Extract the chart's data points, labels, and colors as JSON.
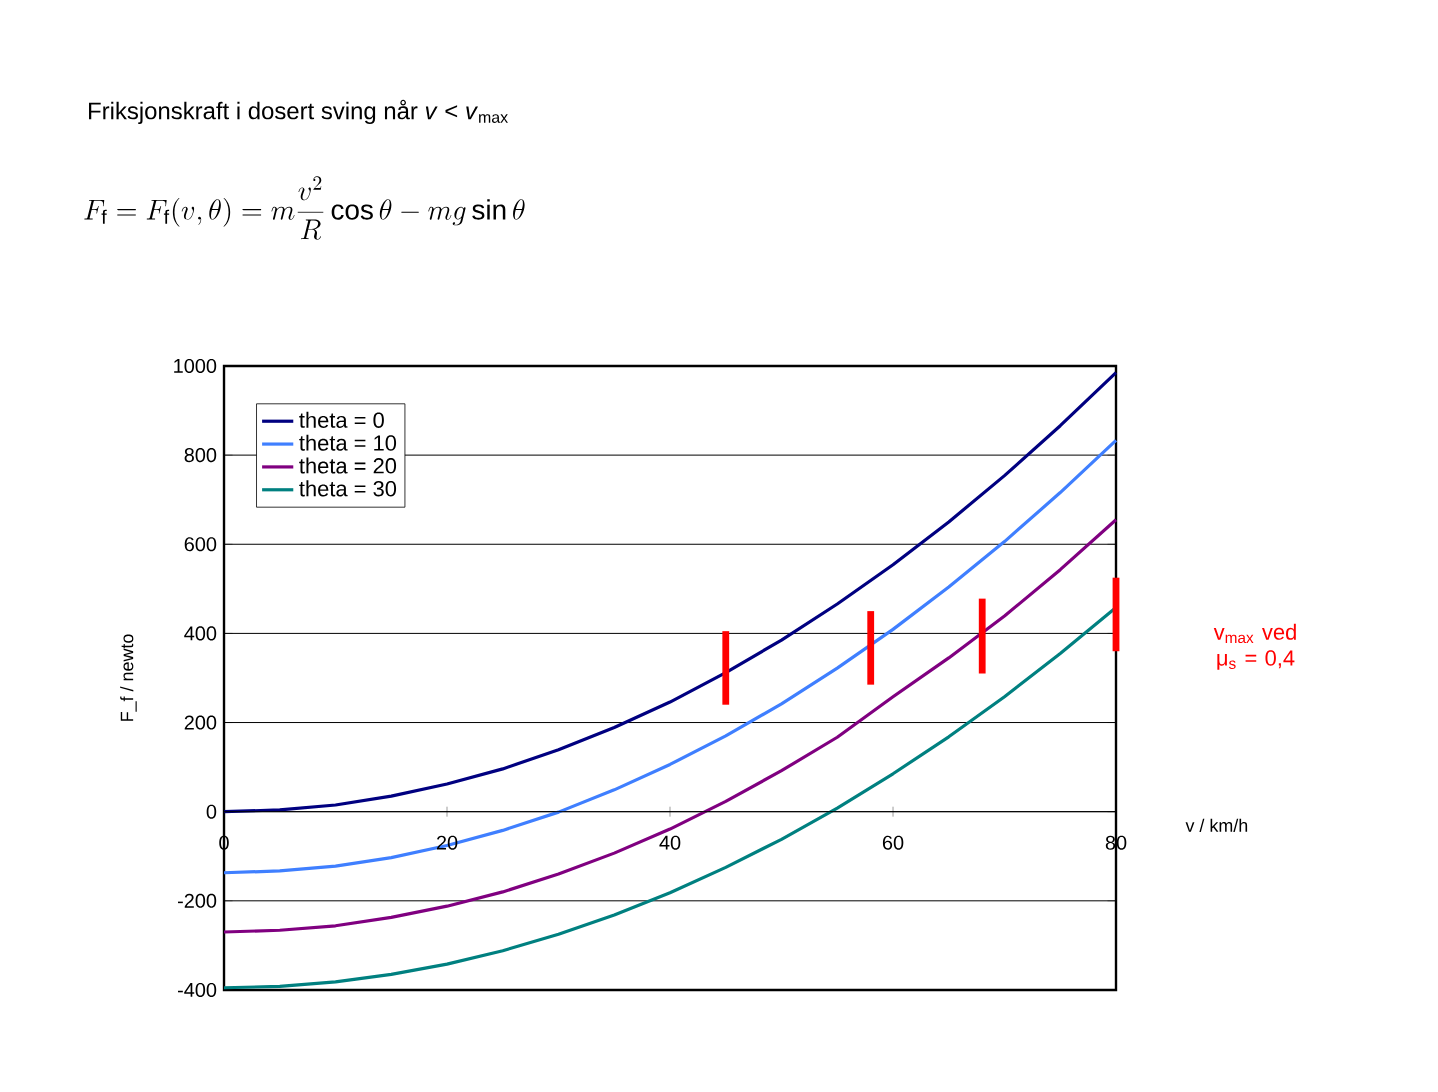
{
  "chart_data": {
    "type": "line",
    "title": "Friksjonskraft i dosert sving når *v* < *v*$_{max}$",
    "subtitle": "F_\\mathrm{f} = F_\\mathrm{f}(v,\\theta) = m\\frac{v^{2}}{R}\\cos\\theta - mg\\sin\\theta",
    "xlabel": "v / km/h",
    "ylabel": "F_f / newto",
    "x": [
      0,
      5,
      10,
      15,
      20,
      25,
      30,
      35,
      40,
      45,
      50,
      55,
      60,
      65,
      70,
      75,
      80
    ],
    "series": [
      {
        "name": "theta = 0",
        "color": "#000080",
        "values": [
          0,
          4,
          15,
          35,
          62,
          96,
          139,
          189,
          246,
          312,
          385,
          466,
          554,
          650,
          754,
          866,
          985
        ]
      },
      {
        "name": "theta = 10",
        "color": "#3f7fff",
        "values": [
          -137,
          -133,
          -122,
          -103,
          -76,
          -42,
          -1,
          49,
          106,
          170,
          242,
          322,
          409,
          504,
          606,
          716,
          833
        ]
      },
      {
        "name": "theta = 20",
        "color": "#800080",
        "values": [
          -270,
          -266,
          -256,
          -237,
          -212,
          -180,
          -140,
          -93,
          -39,
          23,
          92,
          167,
          258,
          345,
          439,
          543,
          655
        ]
      },
      {
        "name": "theta = 30",
        "color": "#008080",
        "values": [
          -395,
          -392,
          -382,
          -365,
          -342,
          -312,
          -275,
          -232,
          -182,
          -125,
          -62,
          8,
          85,
          168,
          258,
          355,
          458
        ]
      },
      {
        "name": "v$_{max}$ ved μ$_{s}$ = 0,4",
        "type": "bar",
        "color": "#ff0000",
        "x": [
          45,
          58,
          68,
          80
        ],
        "base": [
          240,
          285,
          310,
          360
        ],
        "values": [
          165,
          165,
          168,
          165
        ]
      }
    ],
    "xlim": [
      0,
      80
    ],
    "xticks": [
      0,
      20,
      40,
      60,
      80
    ],
    "ylim": [
      -400,
      1000
    ],
    "yticks": [
      -400,
      -200,
      0,
      200,
      400,
      600,
      800,
      1000
    ],
    "grid": "y",
    "legend": "top left",
    "marker": "none",
    "line_style": "solid"
  }
}
